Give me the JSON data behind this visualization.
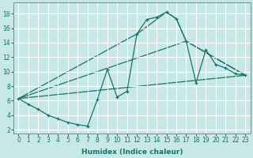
{
  "xlabel": "Humidex (Indice chaleur)",
  "bg_color": "#c8e8e8",
  "line_color": "#1a7070",
  "grid_color": "#ffffff",
  "xlim": [
    -0.5,
    23.5
  ],
  "ylim": [
    1.5,
    19.5
  ],
  "xticks": [
    0,
    1,
    2,
    3,
    4,
    5,
    6,
    7,
    8,
    9,
    10,
    11,
    12,
    13,
    14,
    15,
    16,
    17,
    18,
    19,
    20,
    21,
    22,
    23
  ],
  "yticks": [
    2,
    4,
    6,
    8,
    10,
    12,
    14,
    16,
    18
  ],
  "line1": [
    [
      0,
      6.3
    ],
    [
      1,
      5.5
    ],
    [
      2,
      4.8
    ],
    [
      3,
      4.0
    ],
    [
      4,
      3.5
    ],
    [
      5,
      3.0
    ],
    [
      6,
      2.7
    ],
    [
      7,
      2.5
    ],
    [
      8,
      6.2
    ],
    [
      9,
      10.3
    ],
    [
      10,
      6.5
    ],
    [
      11,
      7.3
    ],
    [
      12,
      15.2
    ],
    [
      13,
      17.2
    ],
    [
      14,
      17.5
    ],
    [
      15,
      18.2
    ],
    [
      16,
      17.3
    ],
    [
      17,
      14.2
    ],
    [
      18,
      8.5
    ],
    [
      19,
      13.0
    ],
    [
      20,
      11.0
    ],
    [
      21,
      10.5
    ],
    [
      22,
      9.7
    ],
    [
      23,
      9.5
    ]
  ],
  "line2": [
    [
      0,
      6.3
    ],
    [
      12,
      15.2
    ],
    [
      15,
      18.2
    ],
    [
      16,
      17.3
    ],
    [
      17,
      14.2
    ],
    [
      23,
      9.5
    ]
  ],
  "line3": [
    [
      0,
      6.3
    ],
    [
      17,
      14.2
    ],
    [
      23,
      9.5
    ]
  ],
  "line4": [
    [
      0,
      6.3
    ],
    [
      23,
      9.5
    ]
  ]
}
